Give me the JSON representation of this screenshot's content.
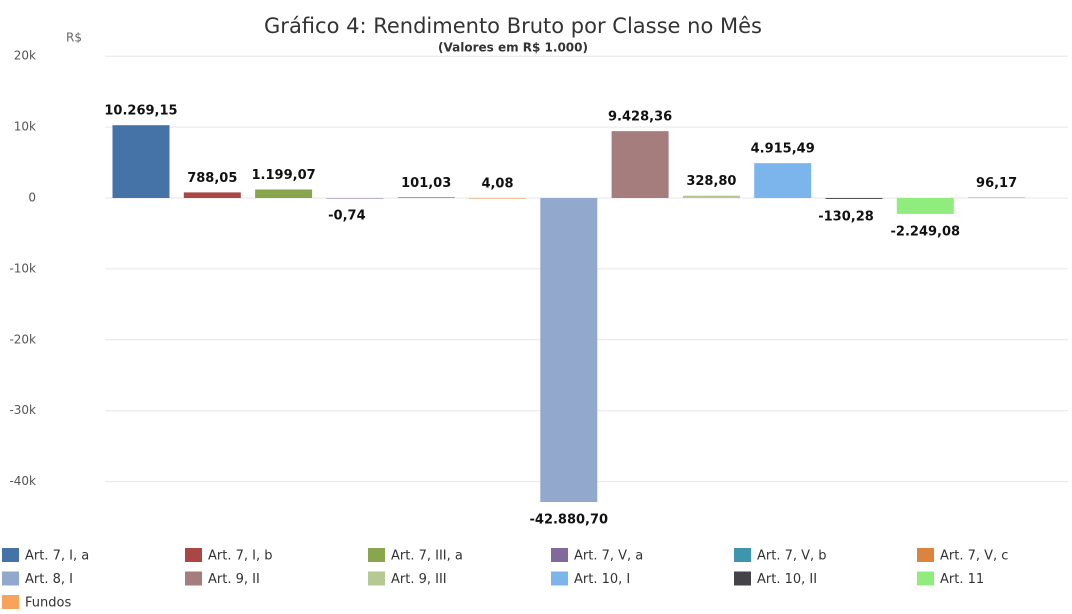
{
  "chart_data": {
    "type": "bar",
    "title": "Gráfico 4: Rendimento Bruto por Classe no Mês",
    "subtitle": "(Valores em R$ 1.000)",
    "y_label": "R$",
    "ylim": [
      -45000,
      20000
    ],
    "yticks": [
      {
        "value": 20000,
        "label": "20k"
      },
      {
        "value": 10000,
        "label": "10k"
      },
      0,
      {
        "value": -10000,
        "label": "-10k"
      },
      {
        "value": -20000,
        "label": "-20k"
      },
      {
        "value": -30000,
        "label": "-30k"
      },
      {
        "value": -40000,
        "label": "-40k"
      }
    ],
    "grid": true,
    "legend": "bottom",
    "series": [
      {
        "name": "Art. 7, I, a",
        "color": "#4572a7",
        "values": [
          10269.15
        ],
        "value_labels": [
          "10.269,15"
        ]
      },
      {
        "name": "Art. 7, I, b",
        "color": "#aa4643",
        "values": [
          788.05
        ],
        "value_labels": [
          "788,05"
        ]
      },
      {
        "name": "Art. 7, III, a",
        "color": "#89a54e",
        "values": [
          1199.07
        ],
        "value_labels": [
          "1.199,07"
        ]
      },
      {
        "name": "Art. 7, V, a",
        "color": "#80699b",
        "values": [
          -0.74
        ],
        "value_labels": [
          "-0,74"
        ]
      },
      {
        "name": "Art. 7, V, b",
        "color": "#3d96ae",
        "values": [
          101.03
        ],
        "value_labels": [
          "101,03"
        ]
      },
      {
        "name": "Art. 7, V, c",
        "color": "#db843d",
        "values": [
          4.08
        ],
        "value_labels": [
          "4,08"
        ]
      },
      {
        "name": "Art. 8, I",
        "color": "#92a8cd",
        "values": [
          -42880.7
        ],
        "value_labels": [
          "-42.880,70"
        ]
      },
      {
        "name": "Art. 9, II",
        "color": "#a47d7c",
        "values": [
          9428.36
        ],
        "value_labels": [
          "9.428,36"
        ]
      },
      {
        "name": "Art. 9, III",
        "color": "#b5ca92",
        "values": [
          328.8
        ],
        "value_labels": [
          "328,80"
        ]
      },
      {
        "name": "Art. 10, I",
        "color": "#7cb5ec",
        "values": [
          4915.49
        ],
        "value_labels": [
          "4.915,49"
        ]
      },
      {
        "name": "Art. 10, II",
        "color": "#434348",
        "values": [
          -130.28
        ],
        "value_labels": [
          "-130,28"
        ]
      },
      {
        "name": "Art. 11",
        "color": "#90ed7d",
        "values": [
          -2249.08
        ],
        "value_labels": [
          "-2.249,08"
        ]
      },
      {
        "name": "Fundos",
        "color": "#f7a35c",
        "values": [
          96.17
        ],
        "value_labels": [
          "96,17"
        ]
      }
    ]
  }
}
